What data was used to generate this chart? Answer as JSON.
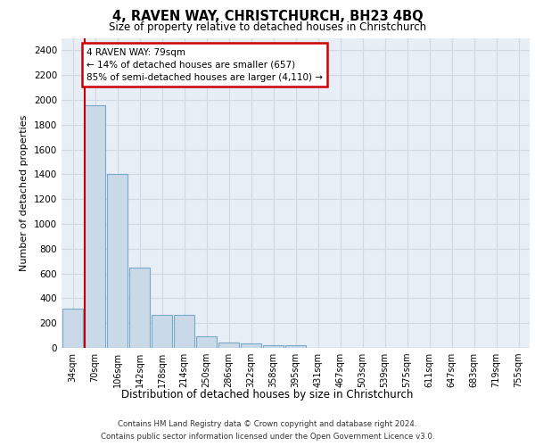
{
  "title1": "4, RAVEN WAY, CHRISTCHURCH, BH23 4BQ",
  "title2": "Size of property relative to detached houses in Christchurch",
  "xlabel": "Distribution of detached houses by size in Christchurch",
  "ylabel": "Number of detached properties",
  "categories": [
    "34sqm",
    "70sqm",
    "106sqm",
    "142sqm",
    "178sqm",
    "214sqm",
    "250sqm",
    "286sqm",
    "322sqm",
    "358sqm",
    "395sqm",
    "431sqm",
    "467sqm",
    "503sqm",
    "539sqm",
    "575sqm",
    "611sqm",
    "647sqm",
    "683sqm",
    "719sqm",
    "755sqm"
  ],
  "bar_values": [
    320,
    1960,
    1400,
    650,
    265,
    265,
    95,
    45,
    35,
    25,
    20,
    0,
    0,
    0,
    0,
    0,
    0,
    0,
    0,
    0,
    0
  ],
  "bar_color": "#c9d9e8",
  "bar_edge_color": "#7aaac8",
  "highlight_line_color": "#cc0000",
  "annotation_text": "4 RAVEN WAY: 79sqm\n← 14% of detached houses are smaller (657)\n85% of semi-detached houses are larger (4,110) →",
  "annotation_box_color": "#ffffff",
  "annotation_box_edge": "#cc0000",
  "ylim": [
    0,
    2500
  ],
  "yticks": [
    0,
    200,
    400,
    600,
    800,
    1000,
    1200,
    1400,
    1600,
    1800,
    2000,
    2200,
    2400
  ],
  "grid_color": "#d0d8e4",
  "bg_color": "#e8eef5",
  "footer1": "Contains HM Land Registry data © Crown copyright and database right 2024.",
  "footer2": "Contains public sector information licensed under the Open Government Licence v3.0."
}
